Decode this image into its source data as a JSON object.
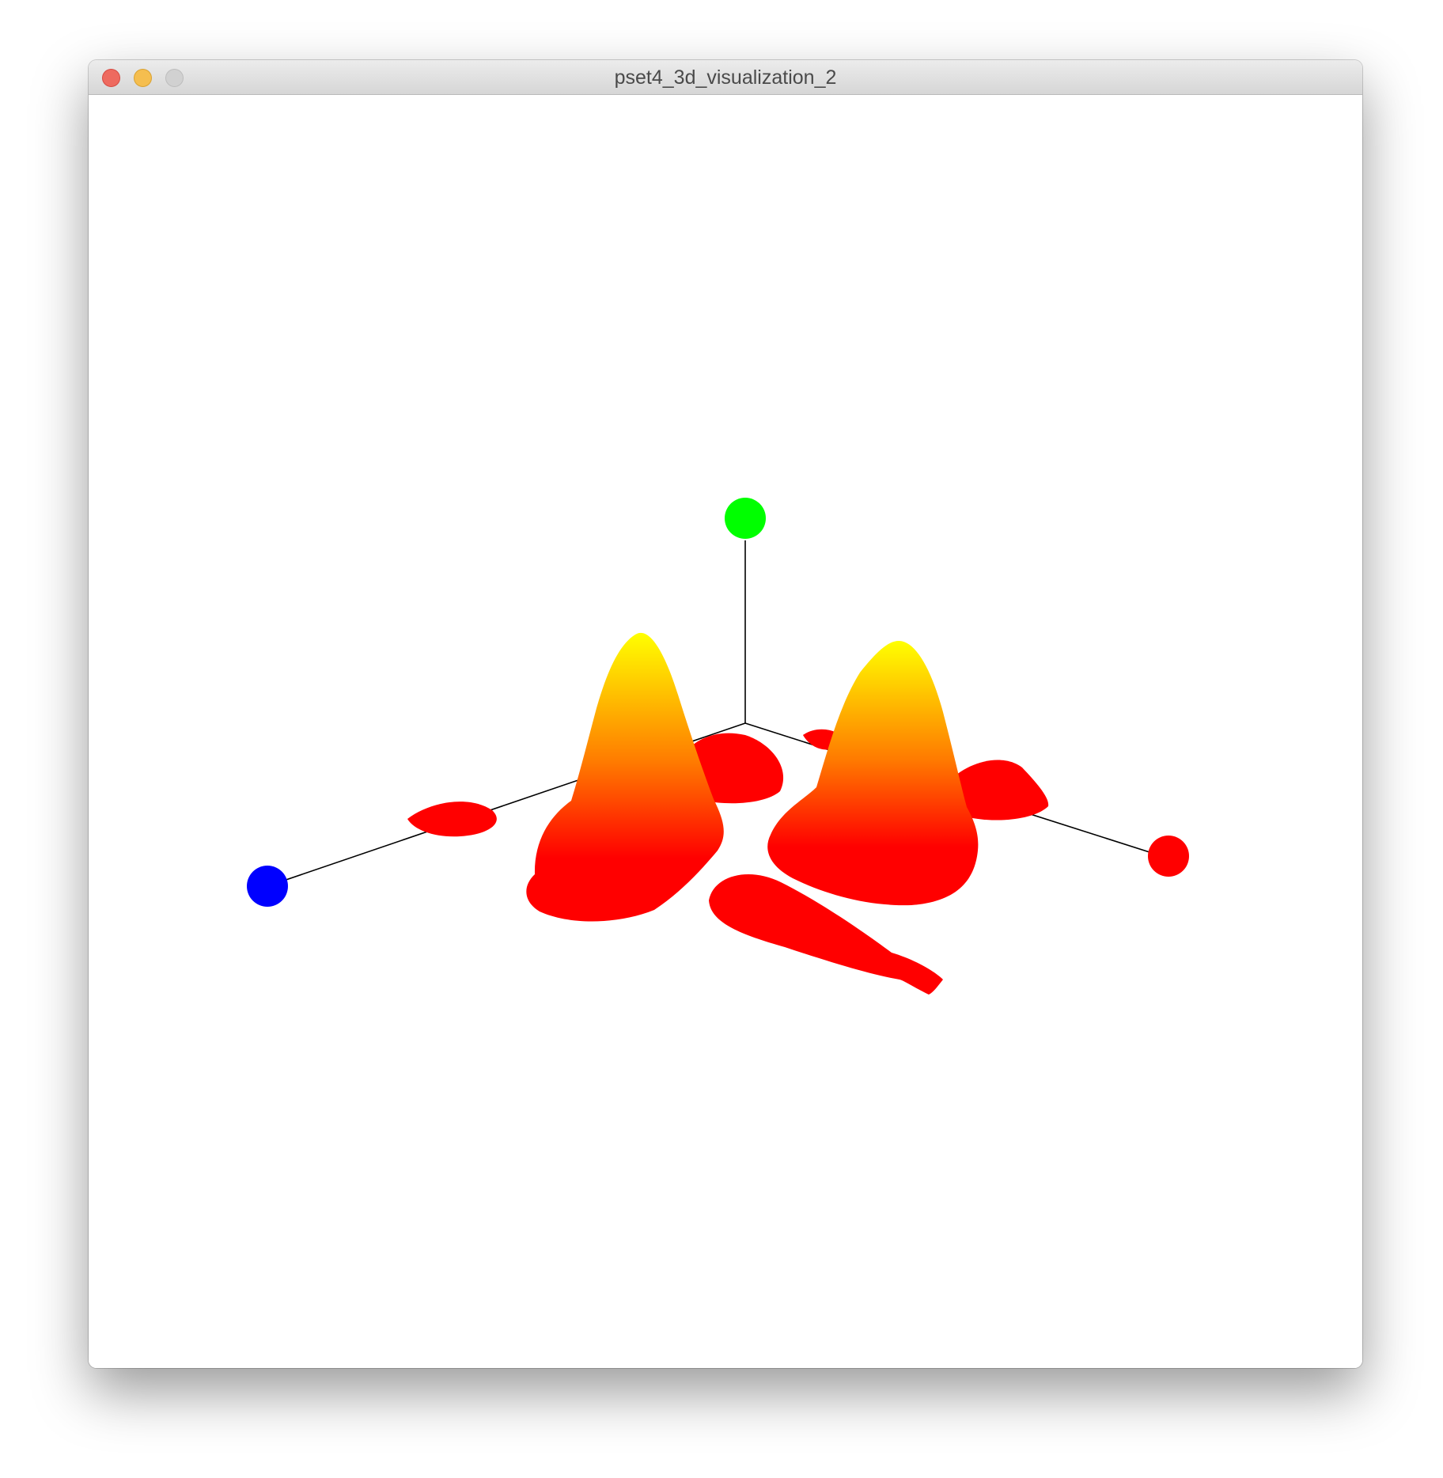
{
  "window": {
    "title": "pset4_3d_visualization_2",
    "buttons": [
      {
        "name": "close",
        "color": "#ee6a5f"
      },
      {
        "name": "minimize",
        "color": "#f5be4f"
      },
      {
        "name": "zoom",
        "color": "#d1d1d1"
      }
    ]
  },
  "scene": {
    "background": "#ffffff",
    "surface_colors": {
      "base": "#ff0000",
      "mid": "#ff7a00",
      "peak": "#ffff00"
    },
    "axis_line_color": "#000000",
    "axis_markers": [
      {
        "axis": "x",
        "color": "#ff0000"
      },
      {
        "axis": "y",
        "color": "#00ff00"
      },
      {
        "axis": "z",
        "color": "#0000ff"
      }
    ]
  }
}
